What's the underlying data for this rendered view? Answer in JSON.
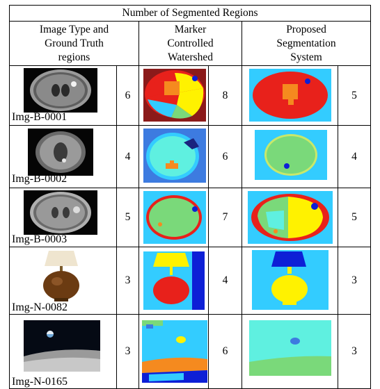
{
  "table": {
    "title": "Number of Segmented Regions",
    "headers": [
      "Image Type and\nGround Truth\nregions",
      "Marker\nControlled\nWatershed",
      "Proposed\nSegmentation\nSystem"
    ],
    "rows": [
      {
        "id": "Img-B-0001",
        "ground_truth": "6",
        "watershed": "8",
        "proposed": "5"
      },
      {
        "id": "Img-B-0002",
        "ground_truth": "4",
        "watershed": "6",
        "proposed": "4"
      },
      {
        "id": "Img-B-0003",
        "ground_truth": "5",
        "watershed": "7",
        "proposed": "5"
      },
      {
        "id": "Img-N-0082",
        "ground_truth": "3",
        "watershed": "4",
        "proposed": "3"
      },
      {
        "id": "Img-N-0165",
        "ground_truth": "3",
        "watershed": "6",
        "proposed": "3"
      }
    ]
  },
  "colors": {
    "seg_red": "#e8211b",
    "seg_orange": "#f58a1f",
    "seg_yellow": "#fff200",
    "seg_cyan": "#33ccff",
    "seg_green": "#7ad97a",
    "seg_blue": "#0d1fd6",
    "seg_darkred": "#8b1a1a",
    "seg_lightcyan": "#5ff0e0"
  },
  "thumbnails": {
    "original": [
      "mri-brain-image",
      "mri-brain-image",
      "mri-brain-image",
      "table-lamp-photo",
      "earthrise-photo"
    ],
    "watershed": [
      "segmented-brain",
      "segmented-brain",
      "segmented-brain",
      "segmented-lamp",
      "segmented-earthrise"
    ],
    "proposed": [
      "segmented-brain",
      "segmented-brain",
      "segmented-brain",
      "segmented-lamp",
      "segmented-earthrise"
    ]
  }
}
